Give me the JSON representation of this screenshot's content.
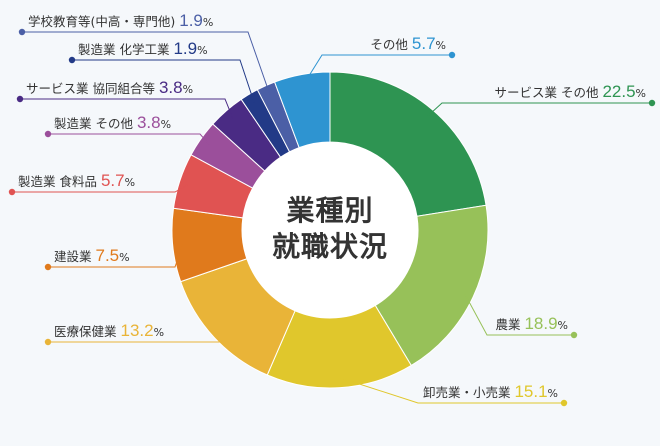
{
  "chart_data": {
    "type": "pie",
    "title_lines": [
      "業種別",
      "就職状況"
    ],
    "unit": "%",
    "slices": [
      {
        "name": "サービス業 その他",
        "value": 22.5,
        "value_label": "22.5",
        "color": "#2e9452"
      },
      {
        "name": "農業",
        "value": 18.9,
        "value_label": "18.9",
        "color": "#97c159"
      },
      {
        "name": "卸売業・小売業",
        "value": 15.1,
        "value_label": "15.1",
        "color": "#e0c72c"
      },
      {
        "name": "医療保健業",
        "value": 13.2,
        "value_label": "13.2",
        "color": "#e9b438"
      },
      {
        "name": "建設業",
        "value": 7.5,
        "value_label": "7.5",
        "color": "#e07a1c"
      },
      {
        "name": "製造業 食料品",
        "value": 5.7,
        "value_label": "5.7",
        "color": "#e05352"
      },
      {
        "name": "製造業 その他",
        "value": 3.8,
        "value_label": "3.8",
        "color": "#9b4f9b"
      },
      {
        "name": "サービス業 協同組合等",
        "value": 3.8,
        "value_label": "3.8",
        "color": "#4a2b84"
      },
      {
        "name": "製造業 化学工業",
        "value": 1.9,
        "value_label": "1.9",
        "color": "#223a87"
      },
      {
        "name": "学校教育等(中高・専門他)",
        "value": 1.9,
        "value_label": "1.9",
        "color": "#4b5fa6"
      },
      {
        "name": "その他",
        "value": 5.7,
        "value_label": "5.7",
        "color": "#2e94d1"
      }
    ]
  }
}
